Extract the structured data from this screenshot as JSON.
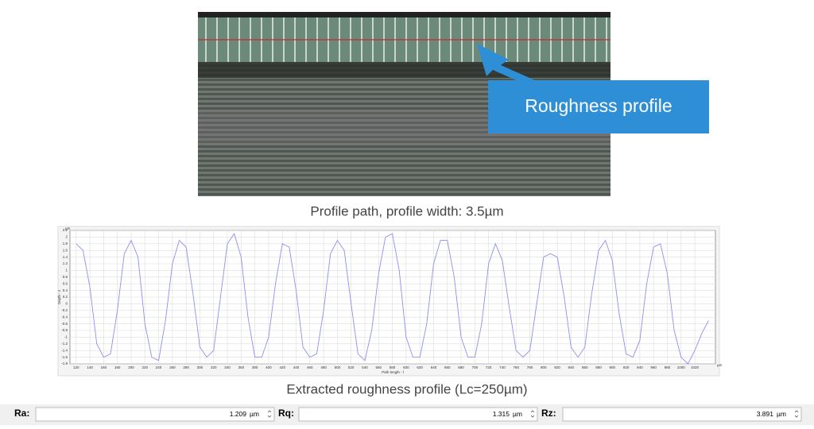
{
  "image_caption": "Profile path, profile width: 3.5µm",
  "callout": "Roughness profile",
  "chart_caption": "Extracted roughness profile (Lc=250µm)",
  "chart_data": {
    "type": "line",
    "y_axis_label": "Depth - z",
    "x_axis_label": "Path length - l",
    "y_unit": "µm",
    "x_unit": "µm",
    "color": "#8f8ff0",
    "grid": true,
    "xlim": [
      111,
      1050
    ],
    "ylim": [
      -1.8,
      2.2
    ],
    "xticks": [
      120,
      140,
      160,
      180,
      200,
      220,
      240,
      260,
      280,
      300,
      320,
      340,
      360,
      380,
      400,
      420,
      440,
      460,
      480,
      500,
      520,
      540,
      560,
      580,
      600,
      620,
      640,
      660,
      680,
      700,
      720,
      740,
      760,
      780,
      800,
      820,
      840,
      860,
      880,
      900,
      920,
      940,
      960,
      980,
      1000,
      1020
    ],
    "yticks": [
      -1.8,
      -1.6,
      -1.4,
      -1.2,
      -1,
      -0.8,
      -0.6,
      -0.4,
      -0.2,
      0,
      0.2,
      0.4,
      0.6,
      0.8,
      1,
      1.2,
      1.4,
      1.6,
      1.8,
      2,
      2.2
    ],
    "x": [
      120,
      130,
      140,
      150,
      160,
      170,
      180,
      190,
      200,
      210,
      220,
      230,
      240,
      250,
      260,
      270,
      280,
      290,
      300,
      310,
      320,
      330,
      340,
      350,
      360,
      370,
      380,
      390,
      400,
      410,
      420,
      430,
      440,
      450,
      460,
      470,
      480,
      490,
      500,
      510,
      520,
      530,
      540,
      550,
      560,
      570,
      580,
      590,
      600,
      610,
      620,
      630,
      640,
      650,
      660,
      670,
      680,
      690,
      700,
      710,
      720,
      730,
      740,
      750,
      760,
      770,
      780,
      790,
      800,
      810,
      820,
      830,
      840,
      850,
      860,
      870,
      880,
      890,
      900,
      910,
      920,
      930,
      940,
      950,
      960,
      970,
      980,
      990,
      1000,
      1010,
      1020,
      1030,
      1040
    ],
    "values": [
      1.8,
      1.6,
      0.5,
      -1.2,
      -1.6,
      -1.5,
      -0.2,
      1.5,
      1.9,
      1.4,
      -0.6,
      -1.6,
      -1.7,
      -0.5,
      1.2,
      1.9,
      1.7,
      0.3,
      -1.3,
      -1.6,
      -1.4,
      0.2,
      1.8,
      2.1,
      1.4,
      -0.4,
      -1.6,
      -1.6,
      -1.0,
      0.6,
      1.8,
      1.7,
      0.4,
      -1.3,
      -1.6,
      -1.5,
      -0.2,
      1.5,
      1.9,
      1.6,
      0,
      -1.5,
      -1.7,
      -0.8,
      0.9,
      2.0,
      2.1,
      1.0,
      -1.0,
      -1.6,
      -1.6,
      -0.6,
      1.2,
      1.9,
      1.9,
      0.8,
      -1.0,
      -1.6,
      -1.6,
      -0.6,
      1.2,
      1.8,
      1.3,
      -0.1,
      -1.4,
      -1.6,
      -1.4,
      0,
      1.4,
      1.5,
      1.4,
      0.2,
      -1.3,
      -1.6,
      -1.3,
      0.3,
      1.6,
      1.9,
      1.3,
      -0.3,
      -1.5,
      -1.6,
      -1.1,
      0.6,
      1.7,
      1.8,
      0.9,
      -0.8,
      -1.6,
      -1.8,
      -1.4,
      -0.9,
      -0.5
    ]
  },
  "fields": [
    {
      "label": "Ra:",
      "value": "1.209",
      "unit": "µm"
    },
    {
      "label": "Rq:",
      "value": "1.315",
      "unit": "µm"
    },
    {
      "label": "Rz:",
      "value": "3.891",
      "unit": "µm"
    }
  ]
}
